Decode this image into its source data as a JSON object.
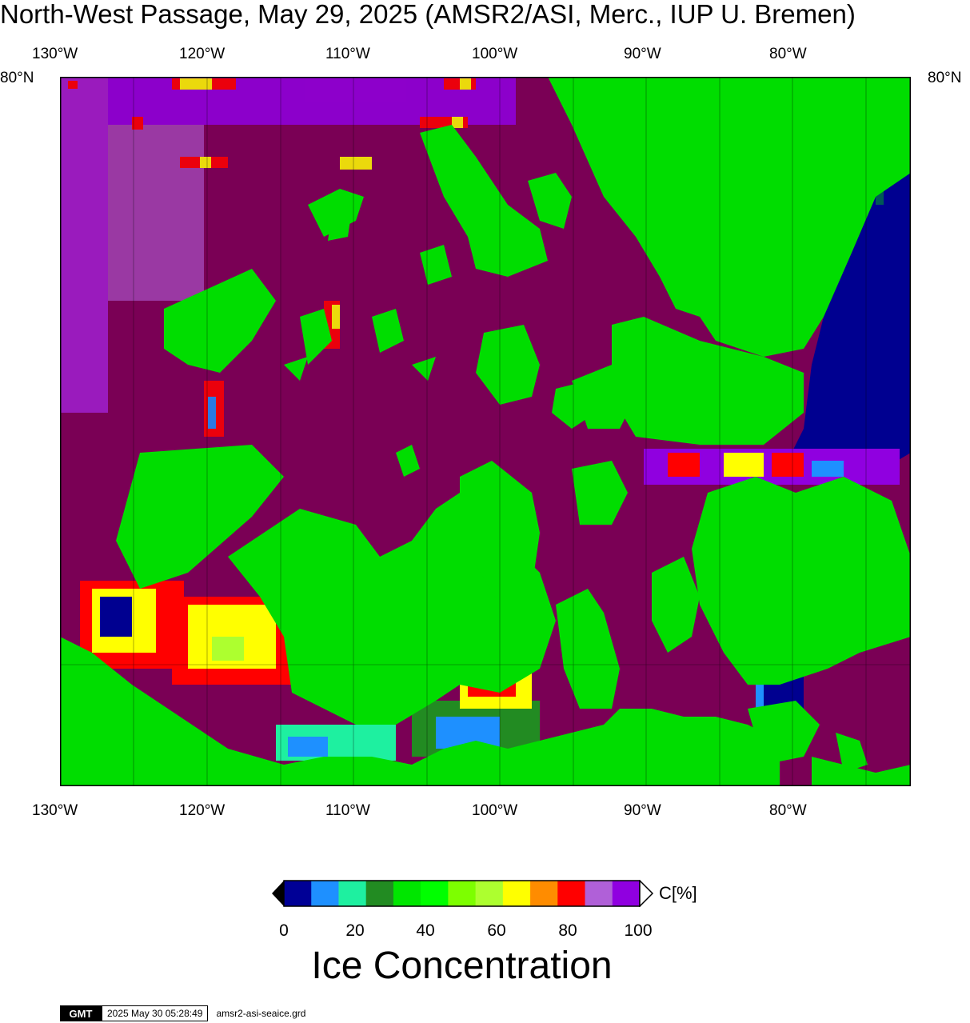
{
  "title": "North-West Passage, May 29, 2025 (AMSR2/ASI, Merc., IUP U. Bremen)",
  "map": {
    "lon_labels": [
      "130°W",
      "120°W",
      "110°W",
      "100°W",
      "90°W",
      "80°W"
    ],
    "lat_label": "80°N",
    "colors": {
      "land": "#00dd00",
      "water_high": "#7a0055",
      "open_water": "#000090",
      "frame": "#000000"
    }
  },
  "colorbar": {
    "caption": "Ice Concentration",
    "unit": "C[%]",
    "tick_labels": [
      "0",
      "20",
      "40",
      "60",
      "80",
      "100"
    ],
    "colors": [
      "#000096",
      "#1e90ff",
      "#1ef0a0",
      "#228b22",
      "#00e600",
      "#00ff00",
      "#7dff00",
      "#adff2f",
      "#ffff00",
      "#ff8c00",
      "#ff0000",
      "#b060d8",
      "#9000e0"
    ]
  },
  "footer": {
    "logo": "GMT",
    "timestamp": "2025 May 30 05:28:49",
    "filename": "amsr2-asi-seaice.grd"
  }
}
